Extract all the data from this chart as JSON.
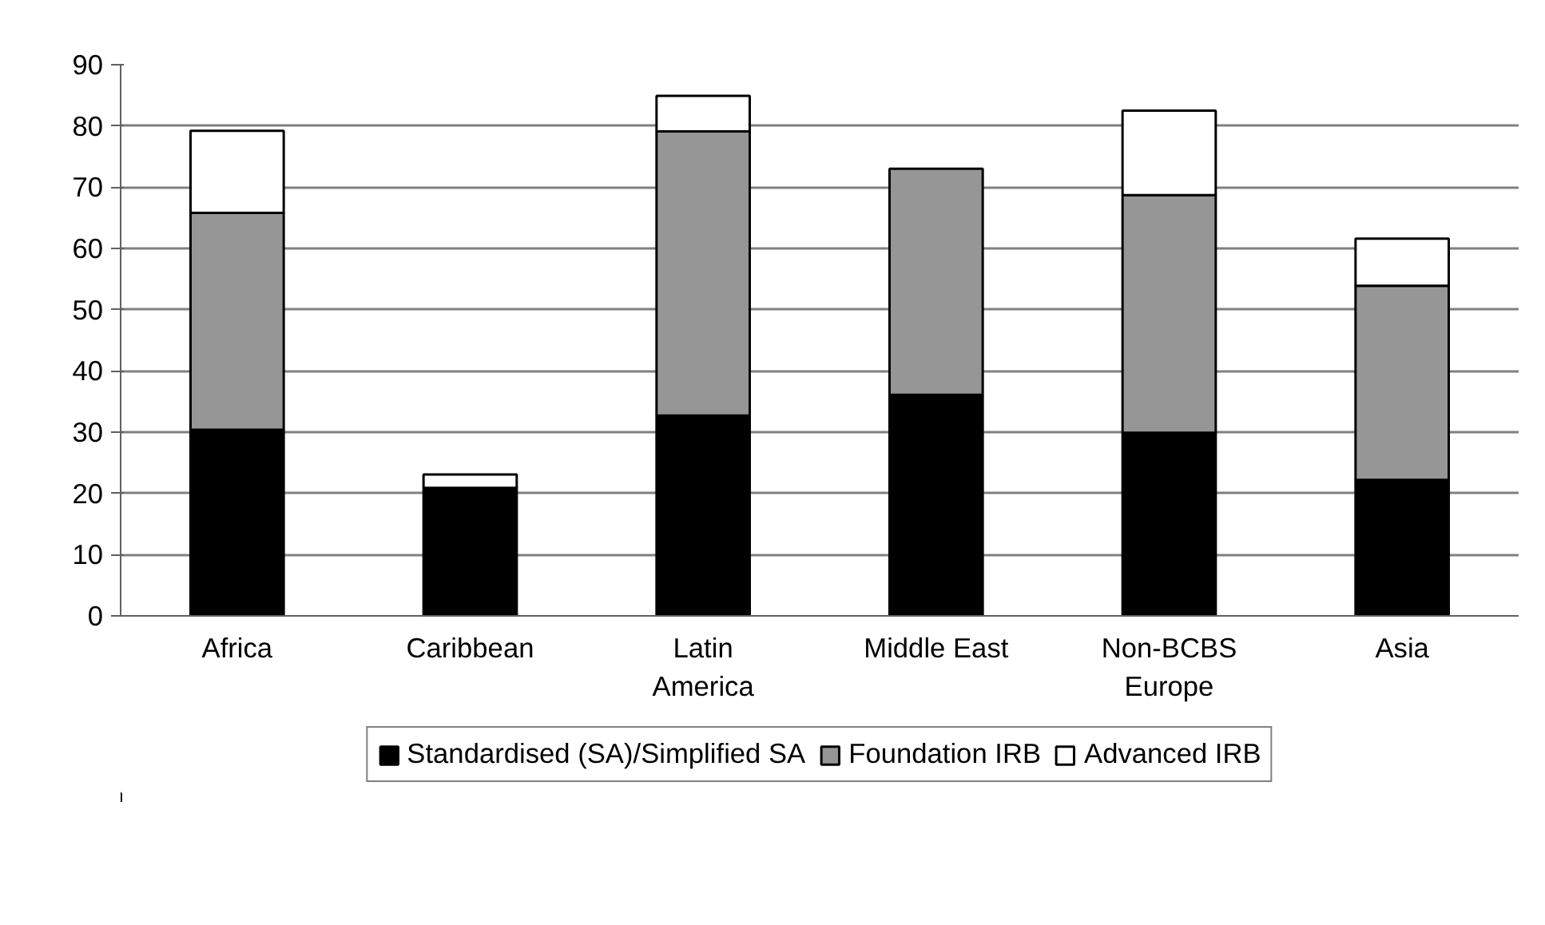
{
  "chart_data": {
    "type": "bar",
    "stacked": true,
    "categories": [
      "Africa",
      "Caribbean",
      "Latin\nAmerica",
      "Middle East",
      "Non-BCBS\nEurope",
      "Asia"
    ],
    "series": [
      {
        "name": "Standardised (SA)/Simplified SA",
        "color": "#000000",
        "values": [
          30.4,
          20.9,
          32.7,
          36.1,
          29.9,
          22.2
        ]
      },
      {
        "name": "Foundation IRB",
        "color": "#969696",
        "values": [
          35.4,
          0,
          46.4,
          36.9,
          38.8,
          31.7
        ]
      },
      {
        "name": "Advanced IRB",
        "color": "#ffffff",
        "values": [
          13.4,
          2.2,
          5.8,
          0,
          13.8,
          7.7
        ]
      }
    ],
    "ylim": [
      0,
      90
    ],
    "yticks": [
      0,
      10,
      20,
      30,
      40,
      50,
      60,
      70,
      80,
      90
    ],
    "grid": "y",
    "legend": "bottom"
  }
}
